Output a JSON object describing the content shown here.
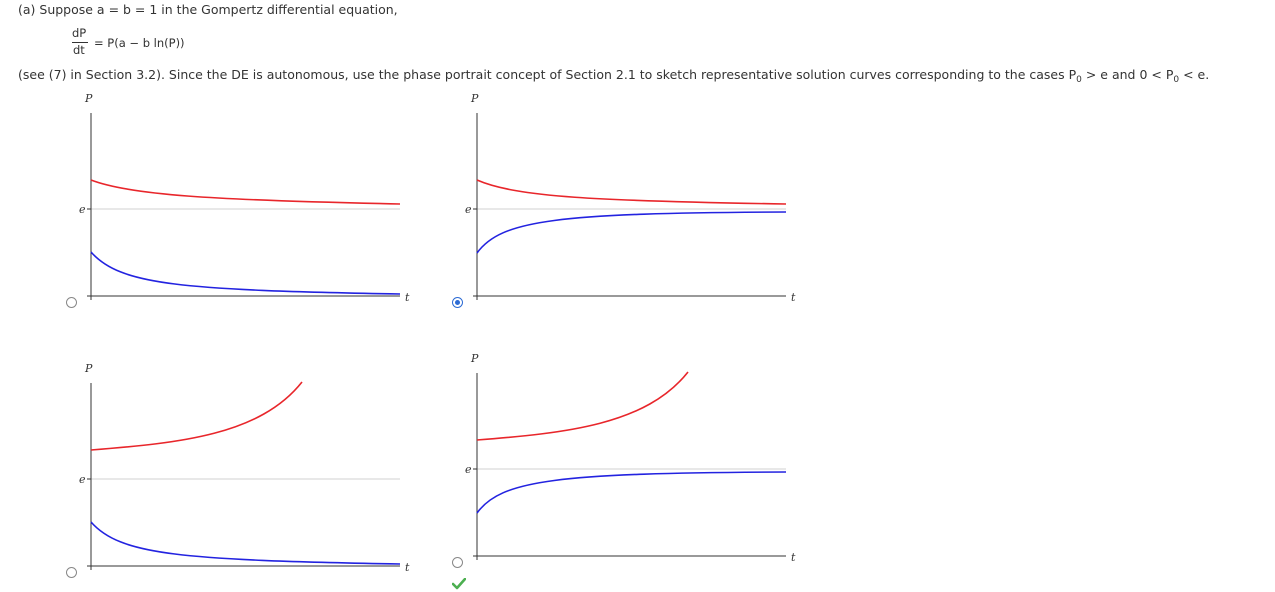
{
  "question": {
    "line1": "(a) Suppose a = b = 1 in the Gompertz differential equation,",
    "frac_num": "dP",
    "frac_den": "dt",
    "eq_rhs": "= P(a − b ln(P))",
    "line3_a": "(see (7) in Section 3.2). Since the DE is autonomous, use the phase portrait concept of Section 2.1 to sketch representative solution curves corresponding to the cases P",
    "sub0": "0",
    "line3_b": " > e and 0 < P",
    "line3_c": " < e."
  },
  "options": [
    {
      "id": "A",
      "selected": false,
      "p_label": "P",
      "e_label": "e",
      "t_label": "t"
    },
    {
      "id": "B",
      "selected": true,
      "p_label": "P",
      "e_label": "e",
      "t_label": "t"
    },
    {
      "id": "C",
      "selected": false,
      "p_label": "P",
      "e_label": "e",
      "t_label": "t"
    },
    {
      "id": "D",
      "selected": false,
      "p_label": "P",
      "e_label": "e",
      "t_label": "t"
    }
  ],
  "colors": {
    "upper_curve": "#e8262b",
    "lower_curve": "#2323e0",
    "axis": "#333333",
    "equilibrium": "#d0d0d0",
    "radio_selected": "#2c6bd4",
    "correct_check": "#4caf50"
  },
  "feedback": {
    "correct_icon": "check-icon"
  }
}
